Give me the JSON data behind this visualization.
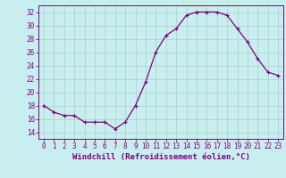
{
  "x": [
    0,
    1,
    2,
    3,
    4,
    5,
    6,
    7,
    8,
    9,
    10,
    11,
    12,
    13,
    14,
    15,
    16,
    17,
    18,
    19,
    20,
    21,
    22,
    23
  ],
  "y": [
    18,
    17,
    16.5,
    16.5,
    15.5,
    15.5,
    15.5,
    14.5,
    15.5,
    18,
    21.5,
    26,
    28.5,
    29.5,
    31.5,
    32,
    32,
    32,
    31.5,
    29.5,
    27.5,
    25,
    23,
    22.5
  ],
  "line_color": "#800080",
  "marker": "+",
  "background_color": "#c8eef0",
  "grid_color": "#aad8cc",
  "xlabel": "Windchill (Refroidissement éolien,°C)",
  "xlabel_color": "#800080",
  "tick_color": "#800080",
  "ylim": [
    13,
    33
  ],
  "xlim": [
    -0.5,
    23.5
  ],
  "yticks": [
    14,
    16,
    18,
    20,
    22,
    24,
    26,
    28,
    30,
    32
  ],
  "xticks": [
    0,
    1,
    2,
    3,
    4,
    5,
    6,
    7,
    8,
    9,
    10,
    11,
    12,
    13,
    14,
    15,
    16,
    17,
    18,
    19,
    20,
    21,
    22,
    23
  ],
  "font_size_label": 6.5,
  "font_size_tick": 5.5,
  "marker_size": 3,
  "linewidth": 0.9
}
